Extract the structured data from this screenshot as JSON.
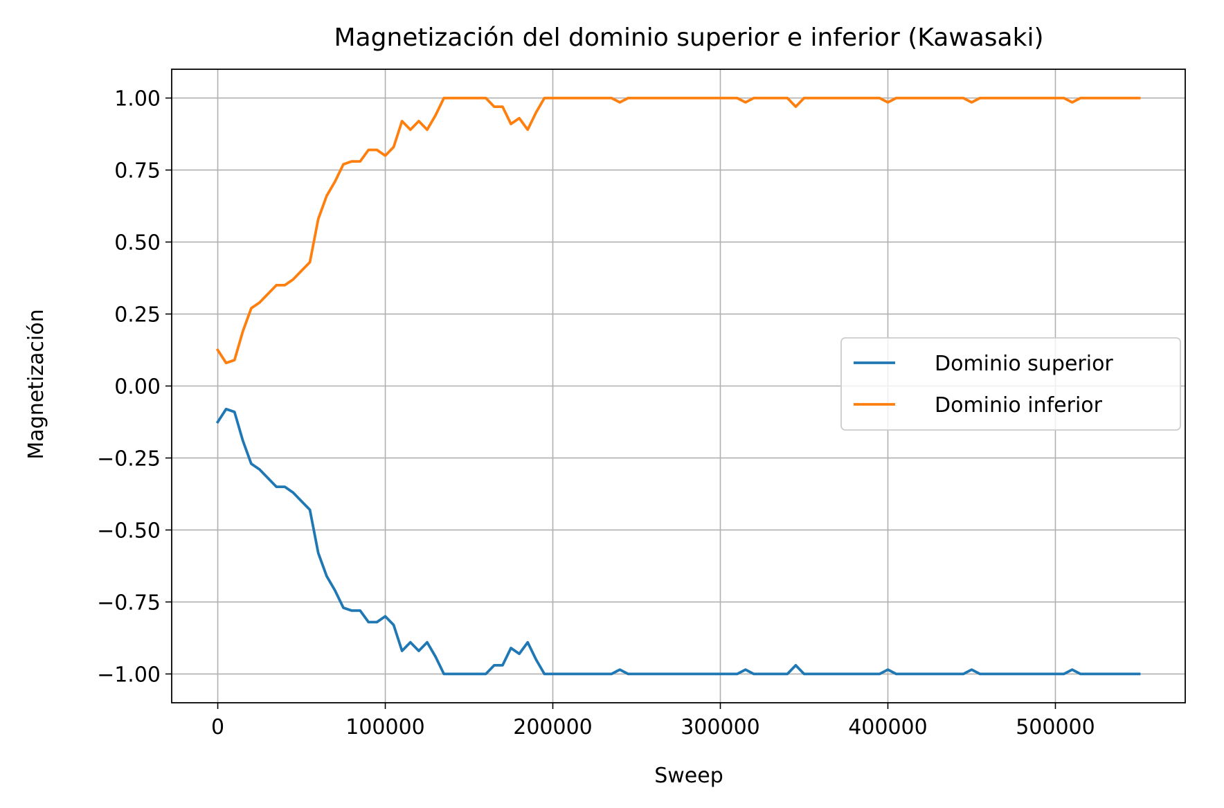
{
  "chart_data": {
    "type": "line",
    "title": "Magnetización del dominio superior e inferior (Kawasaki)",
    "xlabel": "Sweep",
    "ylabel": "Magnetización",
    "xlim": [
      -27500,
      577500
    ],
    "ylim": [
      -1.1,
      1.1
    ],
    "xticks": [
      0,
      100000,
      200000,
      300000,
      400000,
      500000
    ],
    "xtick_labels": [
      "0",
      "100000",
      "200000",
      "300000",
      "400000",
      "500000"
    ],
    "yticks": [
      1.0,
      0.75,
      0.5,
      0.25,
      0.0,
      -0.25,
      -0.5,
      -0.75,
      -1.0
    ],
    "ytick_labels": [
      "1.00",
      "0.75",
      "0.50",
      "0.25",
      "0.00",
      "−0.25",
      "−0.50",
      "−0.75",
      "−1.00"
    ],
    "grid": true,
    "legend_position": "center-right",
    "x": [
      0,
      5000,
      10000,
      15000,
      20000,
      25000,
      30000,
      35000,
      40000,
      45000,
      50000,
      55000,
      60000,
      65000,
      70000,
      75000,
      80000,
      85000,
      90000,
      95000,
      100000,
      105000,
      110000,
      115000,
      120000,
      125000,
      130000,
      135000,
      140000,
      145000,
      150000,
      155000,
      160000,
      165000,
      170000,
      175000,
      180000,
      185000,
      190000,
      195000,
      200000,
      235000,
      240000,
      245000,
      310000,
      315000,
      320000,
      340000,
      345000,
      350000,
      395000,
      400000,
      405000,
      445000,
      450000,
      455000,
      505000,
      510000,
      515000,
      550000
    ],
    "series": [
      {
        "name": "Dominio superior",
        "color": "#1f77b4",
        "values": [
          -0.125,
          -0.08,
          -0.09,
          -0.19,
          -0.27,
          -0.29,
          -0.32,
          -0.35,
          -0.35,
          -0.37,
          -0.4,
          -0.43,
          -0.58,
          -0.66,
          -0.71,
          -0.77,
          -0.78,
          -0.78,
          -0.82,
          -0.82,
          -0.8,
          -0.83,
          -0.92,
          -0.89,
          -0.92,
          -0.89,
          -0.94,
          -1.0,
          -1.0,
          -1.0,
          -1.0,
          -1.0,
          -1.0,
          -0.97,
          -0.97,
          -0.91,
          -0.93,
          -0.89,
          -0.95,
          -1.0,
          -1.0,
          -1.0,
          -0.985,
          -1.0,
          -1.0,
          -0.985,
          -1.0,
          -1.0,
          -0.97,
          -1.0,
          -1.0,
          -0.985,
          -1.0,
          -1.0,
          -0.985,
          -1.0,
          -1.0,
          -0.985,
          -1.0,
          -1.0
        ]
      },
      {
        "name": "Dominio inferior",
        "color": "#ff7f0e",
        "values": [
          0.125,
          0.08,
          0.09,
          0.19,
          0.27,
          0.29,
          0.32,
          0.35,
          0.35,
          0.37,
          0.4,
          0.43,
          0.58,
          0.66,
          0.71,
          0.77,
          0.78,
          0.78,
          0.82,
          0.82,
          0.8,
          0.83,
          0.92,
          0.89,
          0.92,
          0.89,
          0.94,
          1.0,
          1.0,
          1.0,
          1.0,
          1.0,
          1.0,
          0.97,
          0.97,
          0.91,
          0.93,
          0.89,
          0.95,
          1.0,
          1.0,
          1.0,
          0.985,
          1.0,
          1.0,
          0.985,
          1.0,
          1.0,
          0.97,
          1.0,
          1.0,
          0.985,
          1.0,
          1.0,
          0.985,
          1.0,
          1.0,
          0.985,
          1.0,
          1.0
        ]
      }
    ]
  }
}
